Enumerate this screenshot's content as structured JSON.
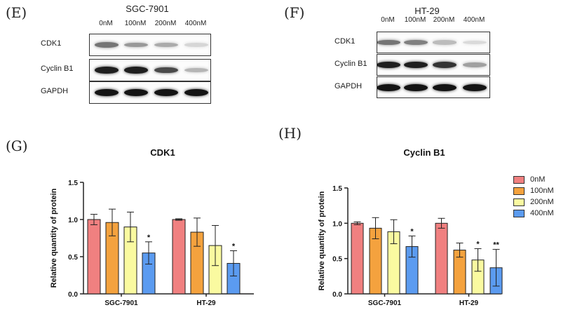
{
  "panels": {
    "E": "(E)",
    "F": "(F)",
    "G": "(G)",
    "H": "(H)"
  },
  "blots": [
    {
      "title": "SGC-7901",
      "lanes": [
        "0nM",
        "100nM",
        "200nM",
        "400nM"
      ],
      "rows": [
        {
          "label": "CDK1",
          "intensity": [
            0.55,
            0.38,
            0.3,
            0.1
          ]
        },
        {
          "label": "Cyclin  B1",
          "intensity": [
            0.95,
            0.95,
            0.75,
            0.25
          ]
        },
        {
          "label": "GAPDH",
          "intensity": [
            1.0,
            1.0,
            1.0,
            1.0
          ]
        }
      ]
    },
    {
      "title": "HT-29",
      "lanes": [
        "0nM",
        "100nM",
        "200nM",
        "400nM"
      ],
      "rows": [
        {
          "label": "CDK1",
          "intensity": [
            0.55,
            0.5,
            0.22,
            0.08
          ]
        },
        {
          "label": "Cyclin  B1",
          "intensity": [
            0.95,
            0.95,
            0.85,
            0.35
          ]
        },
        {
          "label": "GAPDH",
          "intensity": [
            1.0,
            1.0,
            1.0,
            1.0
          ]
        }
      ]
    }
  ],
  "colors": {
    "0nM": "#f08080",
    "100nM": "#f4a23e",
    "200nM": "#fafaa0",
    "400nM": "#5b9bf0"
  },
  "legend": [
    "0nM",
    "100nM",
    "200nM",
    "400nM"
  ],
  "chart_data": [
    {
      "type": "bar",
      "title": "CDK1",
      "ylabel": "Relative quantity of protein",
      "xlabel": "",
      "ylim": [
        0,
        1.5
      ],
      "yticks": [
        "0.0",
        "0.5",
        "1.0",
        "1.5"
      ],
      "categories": [
        "SGC-7901",
        "HT-29"
      ],
      "series": [
        {
          "name": "0nM",
          "values": [
            1.0,
            1.0
          ],
          "errors": [
            0.07,
            0.01
          ]
        },
        {
          "name": "100nM",
          "values": [
            0.96,
            0.83
          ],
          "errors": [
            0.18,
            0.19
          ]
        },
        {
          "name": "200nM",
          "values": [
            0.9,
            0.65
          ],
          "errors": [
            0.2,
            0.27
          ]
        },
        {
          "name": "400nM",
          "values": [
            0.55,
            0.41
          ],
          "errors": [
            0.15,
            0.17
          ]
        }
      ],
      "significance": [
        [
          "",
          ""
        ],
        [
          "",
          ""
        ],
        [
          "",
          ""
        ],
        [
          "*",
          "*"
        ]
      ]
    },
    {
      "type": "bar",
      "title": "Cyclin B1",
      "ylabel": "Relative quantity of protein",
      "xlabel": "",
      "ylim": [
        0,
        1.5
      ],
      "yticks": [
        "0.0",
        "0.5",
        "1.0",
        "1.5"
      ],
      "categories": [
        "SGC-7901",
        "HT-29"
      ],
      "series": [
        {
          "name": "0nM",
          "values": [
            1.0,
            1.0
          ],
          "errors": [
            0.02,
            0.07
          ]
        },
        {
          "name": "100nM",
          "values": [
            0.93,
            0.62
          ],
          "errors": [
            0.15,
            0.1
          ]
        },
        {
          "name": "200nM",
          "values": [
            0.88,
            0.48
          ],
          "errors": [
            0.17,
            0.16
          ]
        },
        {
          "name": "400nM",
          "values": [
            0.67,
            0.37
          ],
          "errors": [
            0.15,
            0.26
          ]
        }
      ],
      "significance": [
        [
          "",
          ""
        ],
        [
          "",
          ""
        ],
        [
          "",
          "*"
        ],
        [
          "*",
          "**"
        ]
      ]
    }
  ]
}
